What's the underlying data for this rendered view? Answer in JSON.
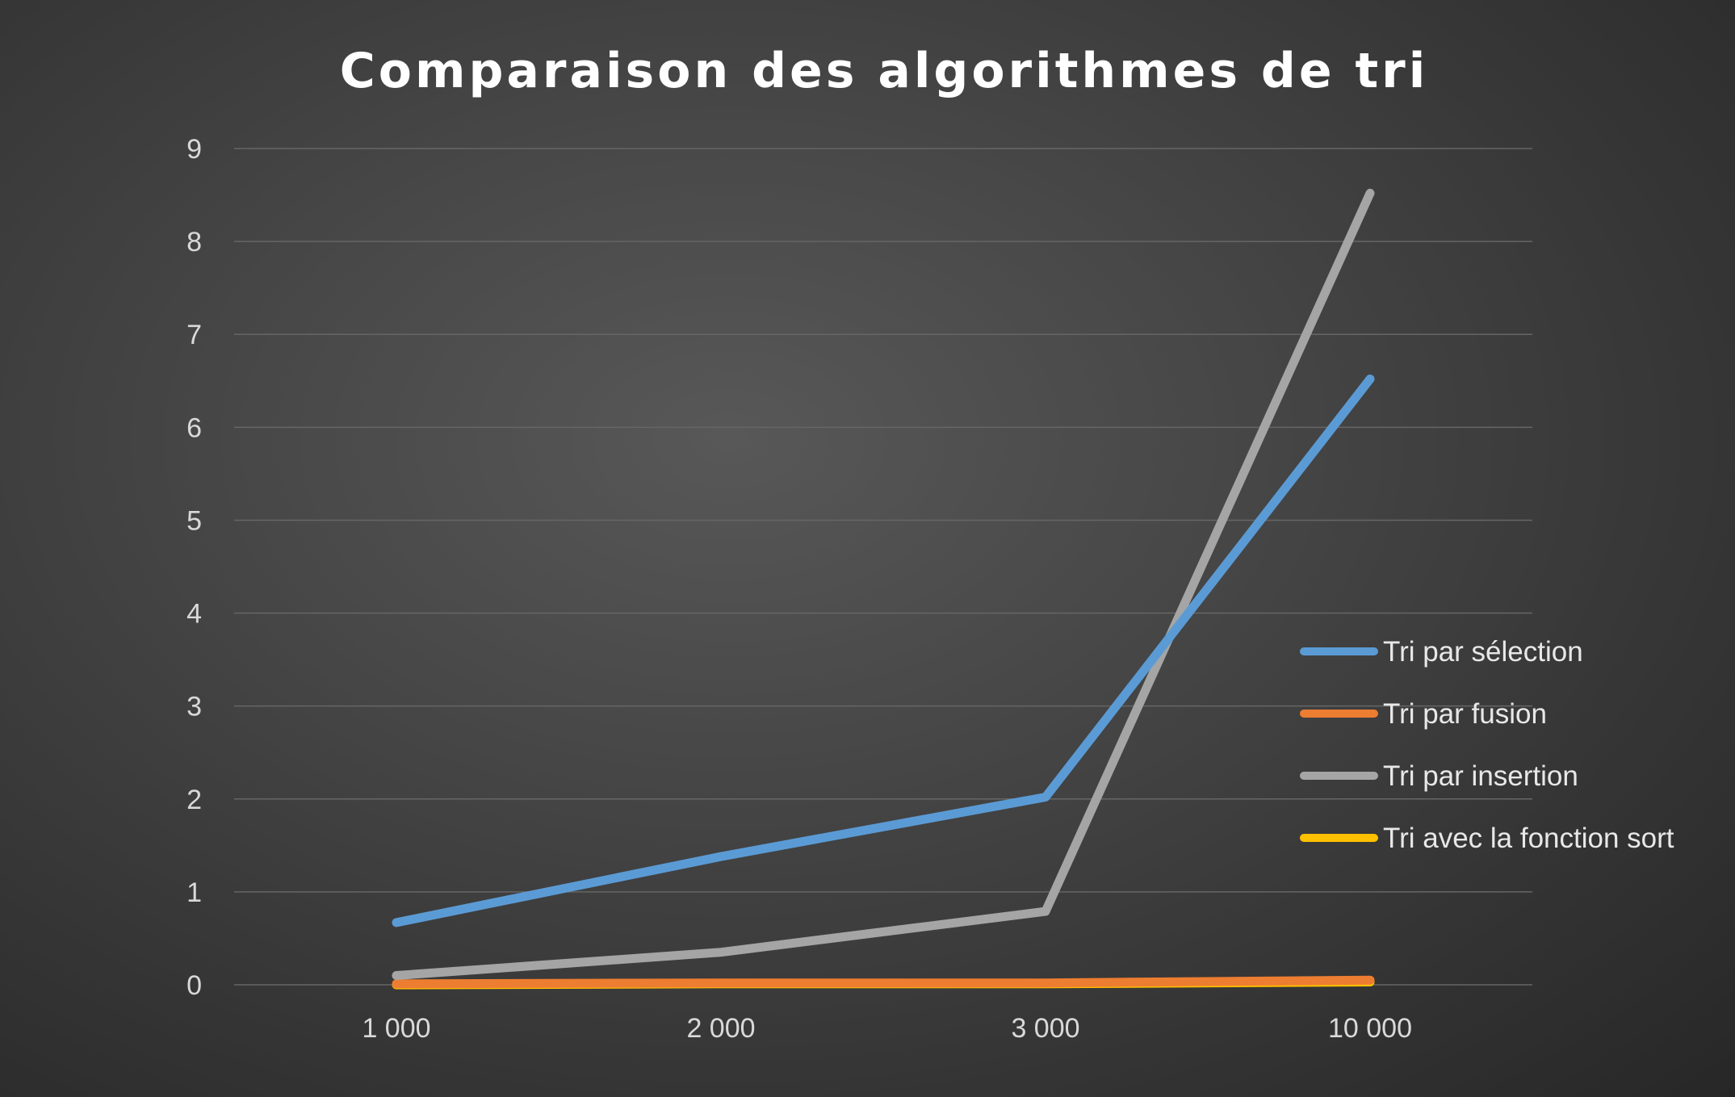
{
  "chart_data": {
    "type": "line",
    "title": "Comparaison des algorithmes de tri",
    "xlabel": "",
    "ylabel": "",
    "categories": [
      "1 000",
      "2 000",
      "3 000",
      "10 000"
    ],
    "ylim": [
      0,
      9
    ],
    "yticks": [
      "0",
      "1",
      "2",
      "3",
      "4",
      "5",
      "6",
      "7",
      "8",
      "9"
    ],
    "grid": true,
    "legend_position": "right",
    "series": [
      {
        "name": "Tri par sélection",
        "color": "#5b9bd5",
        "values": [
          0.67,
          1.38,
          2.02,
          6.52
        ]
      },
      {
        "name": "Tri par fusion",
        "color": "#ed7d31",
        "values": [
          0.01,
          0.02,
          0.02,
          0.05
        ]
      },
      {
        "name": "Tri par insertion",
        "color": "#a5a5a5",
        "values": [
          0.1,
          0.35,
          0.79,
          8.52
        ]
      },
      {
        "name": "Tri avec la fonction sort",
        "color": "#ffc000",
        "values": [
          0.0,
          0.01,
          0.01,
          0.03
        ]
      }
    ]
  }
}
